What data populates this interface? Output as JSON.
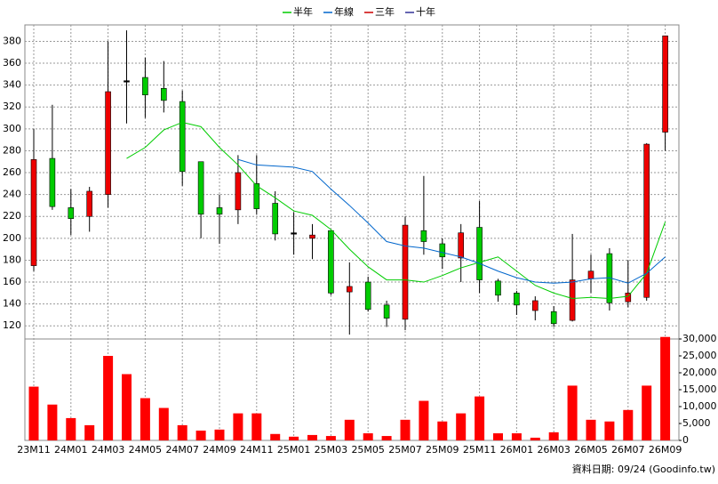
{
  "chart_data": {
    "type": "candlestick",
    "categories": [
      "23M11",
      null,
      "24M01",
      null,
      "24M03",
      null,
      "24M05",
      null,
      "24M07",
      null,
      "24M09",
      null,
      "24M11",
      null,
      "25M01",
      null,
      "25M03",
      null,
      "25M05",
      null,
      "25M07",
      null,
      "25M09",
      null,
      "25M11",
      null,
      "26M01",
      null,
      "26M03",
      null,
      "26M05",
      null,
      "26M07",
      null,
      "26M09"
    ],
    "open": [
      175,
      273,
      228,
      220,
      240,
      344,
      347,
      337,
      325,
      270,
      228,
      226,
      250,
      232,
      205,
      200,
      207,
      151,
      160,
      139,
      126,
      207,
      195,
      182,
      210,
      161,
      150,
      134,
      133,
      125,
      163,
      186,
      142,
      146,
      297
    ],
    "high": [
      300,
      322,
      245,
      247,
      380,
      390,
      365,
      362,
      335,
      270,
      240,
      276,
      276,
      243,
      224,
      213,
      207,
      178,
      165,
      143,
      220,
      257,
      200,
      213,
      234,
      163,
      152,
      147,
      138,
      204,
      185,
      191,
      180,
      287,
      385
    ],
    "low": [
      170,
      226,
      203,
      206,
      228,
      305,
      310,
      315,
      248,
      200,
      195,
      213,
      222,
      198,
      185,
      181,
      148,
      112,
      133,
      119,
      116,
      185,
      172,
      160,
      150,
      142,
      130,
      125,
      119,
      124,
      150,
      134,
      137,
      143,
      280
    ],
    "close": [
      272,
      229,
      218,
      243,
      334,
      344,
      331,
      326,
      261,
      222,
      222,
      260,
      227,
      204,
      205,
      203,
      150,
      156,
      135,
      127,
      212,
      197,
      183,
      205,
      162,
      148,
      139,
      143,
      122,
      162,
      170,
      141,
      150,
      286,
      385
    ],
    "up_color": "#ee0000",
    "down_color": "#00cc00",
    "flat_color": "#000000",
    "series": [
      {
        "name": "半年",
        "color": "#00cc00",
        "values": [
          null,
          null,
          null,
          null,
          null,
          273,
          283,
          299,
          306,
          302,
          283,
          267,
          248,
          237,
          225,
          221,
          208,
          190,
          174,
          162,
          162,
          160,
          166,
          173,
          178,
          183,
          170,
          157,
          150,
          145,
          146,
          145,
          147,
          168,
          215
        ]
      },
      {
        "name": "年線",
        "color": "#0066cc",
        "values": [
          null,
          null,
          null,
          null,
          null,
          null,
          null,
          null,
          null,
          null,
          null,
          272,
          267,
          266,
          265,
          261,
          245,
          230,
          214,
          197,
          193,
          191,
          187,
          183,
          177,
          170,
          164,
          160,
          159,
          160,
          163,
          164,
          159,
          168,
          183
        ]
      },
      {
        "name": "三年",
        "color": "#cc0000",
        "values": [
          null,
          null,
          null,
          null,
          null,
          null,
          null,
          null,
          null,
          null,
          null,
          null,
          null,
          null,
          null,
          null,
          null,
          null,
          null,
          null,
          null,
          null,
          null,
          null,
          null,
          null,
          null,
          null,
          null,
          null,
          null,
          null,
          null,
          null,
          null
        ]
      },
      {
        "name": "十年",
        "color": "#333399",
        "values": [
          null,
          null,
          null,
          null,
          null,
          null,
          null,
          null,
          null,
          null,
          null,
          null,
          null,
          null,
          null,
          null,
          null,
          null,
          null,
          null,
          null,
          null,
          null,
          null,
          null,
          null,
          null,
          null,
          null,
          null,
          null,
          null,
          null,
          null,
          null
        ]
      }
    ],
    "ylim": [
      108,
      395
    ],
    "yticks": [
      120,
      140,
      160,
      180,
      200,
      220,
      240,
      260,
      280,
      300,
      320,
      340,
      360,
      380
    ],
    "grid": true,
    "volume": {
      "color": "#ff0000",
      "values": [
        15900,
        10600,
        6600,
        4500,
        25000,
        19600,
        12500,
        9600,
        4500,
        2900,
        3200,
        8000,
        8000,
        1900,
        1100,
        1600,
        1300,
        6100,
        2100,
        1300,
        6100,
        11700,
        5600,
        8000,
        13000,
        2100,
        2100,
        800,
        2400,
        16200,
        6100,
        5600,
        9000,
        16200,
        30600
      ],
      "ylim": [
        0,
        30000
      ],
      "yticks": [
        0,
        {
          "value": 5000,
          "label": "5,000"
        },
        {
          "value": 10000,
          "label": "10,000"
        },
        {
          "value": 15000,
          "label": "15,000"
        },
        {
          "value": 20000,
          "label": "20,000"
        },
        {
          "value": 25000,
          "label": "25,000"
        },
        {
          "value": 30000,
          "label": "30,000"
        }
      ]
    },
    "footer": "資料日期: 09/24 (Goodinfo.tw)"
  }
}
